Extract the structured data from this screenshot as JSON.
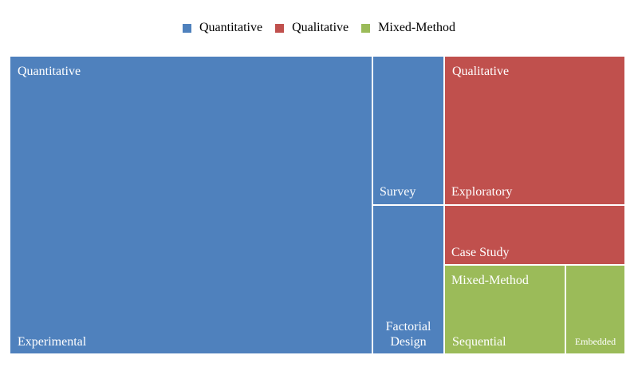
{
  "legend": {
    "items": [
      {
        "label": "Quantitative",
        "color": "#4f81bd"
      },
      {
        "label": "Qualitative",
        "color": "#c0504d"
      },
      {
        "label": "Mixed-Method",
        "color": "#9bbb59"
      }
    ]
  },
  "chart_data": {
    "type": "treemap",
    "title": "",
    "legend_position": "top",
    "groups": [
      {
        "name": "Quantitative",
        "color": "#4f81bd",
        "children": [
          {
            "name": "Experimental",
            "value": 68
          },
          {
            "name": "Survey",
            "value": 7
          },
          {
            "name": "Factorial\nDesign",
            "value": 7
          }
        ]
      },
      {
        "name": "Qualitative",
        "color": "#c0504d",
        "children": [
          {
            "name": "Exploratory",
            "value": 10
          },
          {
            "name": "Case Study",
            "value": 4
          }
        ]
      },
      {
        "name": "Mixed-Method",
        "color": "#9bbb59",
        "children": [
          {
            "name": "Sequential",
            "value": 6
          },
          {
            "name": "Embedded",
            "value": 3
          }
        ]
      }
    ]
  }
}
